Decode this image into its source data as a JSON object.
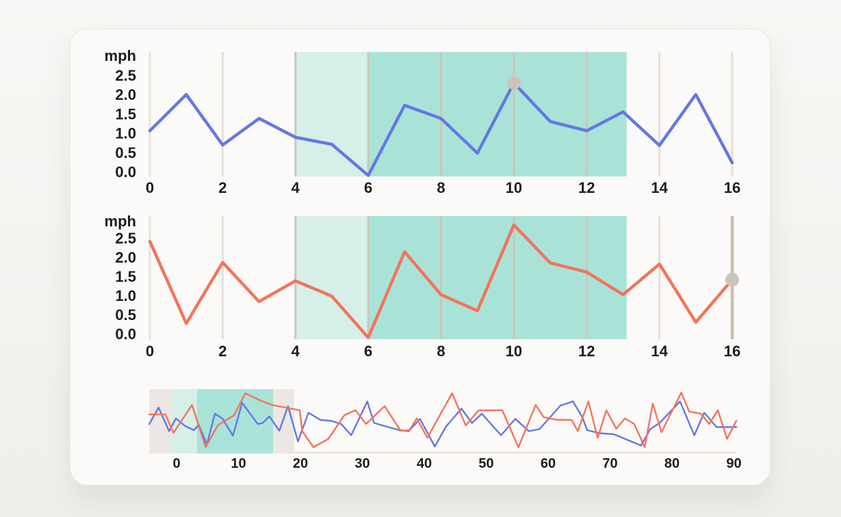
{
  "colors": {
    "page_background": "#f3f2ef",
    "card_background": "#fbfaf8",
    "card_border": "#eae8e2",
    "text": "#1d1c1a",
    "blue_series": "#6577e3",
    "orange_series": "#f4735b",
    "highlight_light_teal": "#d6efe9",
    "highlight_dark_teal": "#a9e3d8",
    "gridline": "#e4e1da",
    "gridline_on_highlight": "#cdc6ba",
    "cursor_line": "#c6bfb2",
    "marker_dot": "#cbc4b8",
    "brush_window_gray": "#ebe8e3",
    "overview_axis_line": "#e6e2db"
  },
  "chart_data": [
    {
      "id": "speed-chart-top",
      "type": "line",
      "ylabel": "mph",
      "yticks": [
        "2.5",
        "2.0",
        "1.5",
        "1.0",
        "0.5",
        "0.0"
      ],
      "ytick_values": [
        2.5,
        2.0,
        1.5,
        1.0,
        0.5,
        0.0
      ],
      "xticks": [
        0,
        2,
        4,
        6,
        8,
        10,
        12,
        14,
        16
      ],
      "xlim": [
        0,
        16
      ],
      "ylim": [
        -0.12,
        3.1
      ],
      "grid": "vertical",
      "legend": "none",
      "highlight_regions": [
        {
          "label": "light",
          "from": 4,
          "to": 6,
          "color": "#d6efe9"
        },
        {
          "label": "dark",
          "from": 6,
          "to": 13.1,
          "color": "#a9e3d8"
        }
      ],
      "series": [
        {
          "name": "speed-blue",
          "color": "#6577e3",
          "x": [
            0,
            1,
            2,
            3,
            4,
            5,
            6,
            7,
            8,
            9,
            10,
            11,
            12,
            13,
            14,
            15,
            16
          ],
          "values": [
            1.06,
            2.0,
            0.69,
            1.38,
            0.89,
            0.71,
            -0.1,
            1.72,
            1.38,
            0.48,
            2.3,
            1.3,
            1.06,
            1.55,
            0.68,
            2.0,
            0.23
          ]
        }
      ],
      "marker": {
        "x": 10,
        "y": 2.3
      }
    },
    {
      "id": "speed-chart-bottom",
      "type": "line",
      "ylabel": "mph",
      "yticks": [
        "2.5",
        "2.0",
        "1.5",
        "1.0",
        "0.5",
        "0.0"
      ],
      "ytick_values": [
        2.5,
        2.0,
        1.5,
        1.0,
        0.5,
        0.0
      ],
      "xticks": [
        0,
        2,
        4,
        6,
        8,
        10,
        12,
        14,
        16
      ],
      "xlim": [
        0,
        16
      ],
      "ylim": [
        -0.12,
        3.1
      ],
      "grid": "vertical",
      "legend": "none",
      "highlight_regions": [
        {
          "label": "light",
          "from": 4,
          "to": 6,
          "color": "#d6efe9"
        },
        {
          "label": "dark",
          "from": 6,
          "to": 13.1,
          "color": "#a9e3d8"
        }
      ],
      "series": [
        {
          "name": "speed-orange",
          "color": "#f4735b",
          "x": [
            0,
            1,
            2,
            3,
            4,
            5,
            6,
            7,
            8,
            9,
            10,
            11,
            12,
            13,
            14,
            15,
            16
          ],
          "values": [
            2.41,
            0.27,
            1.86,
            0.84,
            1.38,
            0.98,
            -0.1,
            2.14,
            1.02,
            0.6,
            2.84,
            1.85,
            1.61,
            1.02,
            1.82,
            0.3,
            1.41
          ]
        }
      ],
      "cursor_x": 16,
      "marker": {
        "x": 16,
        "y": 1.41
      }
    },
    {
      "id": "overview-brush",
      "type": "line",
      "ylabel": "",
      "yticks": [],
      "xticks": [
        0,
        10,
        20,
        30,
        40,
        50,
        60,
        70,
        80,
        90
      ],
      "xlim": [
        -4.5,
        91
      ],
      "ylim": [
        0,
        3.1
      ],
      "grid": "off",
      "legend": "none",
      "highlight_regions": [
        {
          "label": "brush-window",
          "from": -4.4,
          "to": 19.0,
          "color": "#ebe8e3"
        },
        {
          "label": "light",
          "from": -0.7,
          "to": 3.3,
          "color": "#d6efe9"
        },
        {
          "label": "dark",
          "from": 3.3,
          "to": 15.6,
          "color": "#a9e3d8"
        }
      ],
      "series": [
        {
          "name": "overview-blue",
          "color": "#6577e3",
          "points": [
            [
              -4.4,
              1.4
            ],
            [
              -2.9,
              2.2
            ],
            [
              -1.2,
              1.05
            ],
            [
              -0.1,
              1.67
            ],
            [
              1.4,
              1.3
            ],
            [
              2.8,
              1.1
            ],
            [
              3.6,
              1.35
            ],
            [
              4.9,
              0.4
            ],
            [
              6.2,
              1.9
            ],
            [
              7.4,
              1.67
            ],
            [
              9.1,
              0.83
            ],
            [
              10.6,
              2.43
            ],
            [
              12.3,
              1.73
            ],
            [
              13.1,
              1.4
            ],
            [
              13.9,
              1.45
            ],
            [
              15.0,
              1.77
            ],
            [
              16.6,
              1.07
            ],
            [
              18.0,
              2.27
            ],
            [
              19.6,
              0.55
            ],
            [
              21.3,
              1.95
            ],
            [
              23.2,
              1.6
            ],
            [
              25.0,
              1.55
            ],
            [
              26.6,
              1.4
            ],
            [
              28.2,
              0.85
            ],
            [
              30.8,
              2.5
            ],
            [
              31.9,
              1.45
            ],
            [
              33.6,
              1.3
            ],
            [
              36.0,
              1.1
            ],
            [
              37.5,
              1.05
            ],
            [
              39.3,
              1.65
            ],
            [
              41.7,
              0.3
            ],
            [
              43.5,
              1.27
            ],
            [
              46.0,
              2.15
            ],
            [
              47.7,
              1.45
            ],
            [
              49.3,
              1.9
            ],
            [
              52.4,
              0.85
            ],
            [
              54.7,
              1.65
            ],
            [
              56.9,
              1.05
            ],
            [
              58.6,
              1.15
            ],
            [
              62.0,
              2.3
            ],
            [
              64.0,
              2.5
            ],
            [
              65.5,
              1.75
            ],
            [
              66.3,
              1.1
            ],
            [
              68.3,
              0.95
            ],
            [
              70.6,
              0.9
            ],
            [
              73.0,
              0.6
            ],
            [
              75.0,
              0.35
            ],
            [
              76.5,
              1.15
            ],
            [
              78.0,
              1.45
            ],
            [
              81.3,
              2.5
            ],
            [
              83.6,
              0.85
            ],
            [
              85.2,
              1.95
            ],
            [
              87.2,
              1.25
            ],
            [
              90.4,
              1.25
            ]
          ]
        },
        {
          "name": "overview-orange",
          "color": "#f4735b",
          "points": [
            [
              -4.4,
              1.87
            ],
            [
              -1.8,
              1.87
            ],
            [
              -0.5,
              0.97
            ],
            [
              2.5,
              2.33
            ],
            [
              4.7,
              0.27
            ],
            [
              6.7,
              1.35
            ],
            [
              9.3,
              1.83
            ],
            [
              11.1,
              2.9
            ],
            [
              13.5,
              2.55
            ],
            [
              15.4,
              2.33
            ],
            [
              17.6,
              2.2
            ],
            [
              19.9,
              2.07
            ],
            [
              20.3,
              1.05
            ],
            [
              22.1,
              0.27
            ],
            [
              24.5,
              0.67
            ],
            [
              27.1,
              1.83
            ],
            [
              28.9,
              2.07
            ],
            [
              30.6,
              1.4
            ],
            [
              33.6,
              2.27
            ],
            [
              36.2,
              1.07
            ],
            [
              37.6,
              1.1
            ],
            [
              38.8,
              1.67
            ],
            [
              40.5,
              0.73
            ],
            [
              44.5,
              2.9
            ],
            [
              46.7,
              1.33
            ],
            [
              48.8,
              2.07
            ],
            [
              52.6,
              2.07
            ],
            [
              55.2,
              0.27
            ],
            [
              58.0,
              2.33
            ],
            [
              59.3,
              1.73
            ],
            [
              61.5,
              1.6
            ],
            [
              63.8,
              1.6
            ],
            [
              64.8,
              1.05
            ],
            [
              66.5,
              2.5
            ],
            [
              68.0,
              0.73
            ],
            [
              69.4,
              2.07
            ],
            [
              71.0,
              1.17
            ],
            [
              72.4,
              1.67
            ],
            [
              73.9,
              1.4
            ],
            [
              75.6,
              0.27
            ],
            [
              76.9,
              2.4
            ],
            [
              78.3,
              1.0
            ],
            [
              81.5,
              2.93
            ],
            [
              82.8,
              2.0
            ],
            [
              84.7,
              1.9
            ],
            [
              86.0,
              1.4
            ],
            [
              87.4,
              2.07
            ],
            [
              88.9,
              0.67
            ],
            [
              90.4,
              1.57
            ]
          ]
        }
      ]
    }
  ]
}
